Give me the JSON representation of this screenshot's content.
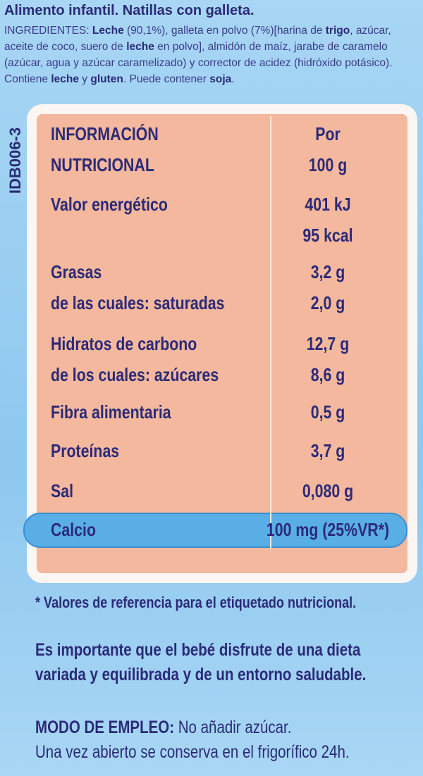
{
  "header": {
    "title": "Alimento infantil. Natillas con galleta.",
    "ingredients": [
      "INGREDIENTES: ",
      "Leche",
      " (90,1%), galleta en polvo (7%)[harina de ",
      "trigo",
      ", azúcar, aceite de coco, suero de ",
      "leche",
      " en polvo], almidón de maíz, jarabe de caramelo (azúcar, agua y azúcar caramelizado) y corrector de acidez (hidróxido potásico). Contiene ",
      "leche",
      " y ",
      "gluten",
      ". Puede contener ",
      "soja",
      "."
    ]
  },
  "side_code": "IDB006-3",
  "table": {
    "header": {
      "label": [
        "INFORMACIÓN",
        "NUTRICIONAL"
      ],
      "value": [
        "Por",
        "100 g"
      ]
    },
    "rows": [
      {
        "label": [
          "Valor energético"
        ],
        "value": [
          "401 kJ",
          "95 kcal"
        ]
      },
      {
        "label": [
          "Grasas",
          "de las cuales: saturadas"
        ],
        "value": [
          "3,2 g",
          "2,0 g"
        ]
      },
      {
        "label": [
          "Hidratos de carbono",
          "de los cuales: azúcares"
        ],
        "value": [
          "12,7 g",
          "8,6 g"
        ]
      },
      {
        "label": [
          "Fibra alimentaria"
        ],
        "value": [
          "0,5 g"
        ]
      },
      {
        "label": [
          "Proteínas"
        ],
        "value": [
          "3,7 g"
        ]
      },
      {
        "label": [
          "Sal"
        ],
        "value": [
          "0,080 g"
        ]
      },
      {
        "label": [
          "Calcio"
        ],
        "value": [
          "100 mg (25%VR*)"
        ]
      }
    ]
  },
  "footnote": "* Valores de referencia para el etiquetado nutricional.",
  "note": "Es importante que el bebé disfrute de una dieta variada y equilibrada y de un entorno saludable.",
  "usage": {
    "label": "MODO DE EMPLEO:",
    "text": " No añadir azúcar.",
    "line2": "Una vez abierto se conserva en el frigorífico 24h."
  }
}
